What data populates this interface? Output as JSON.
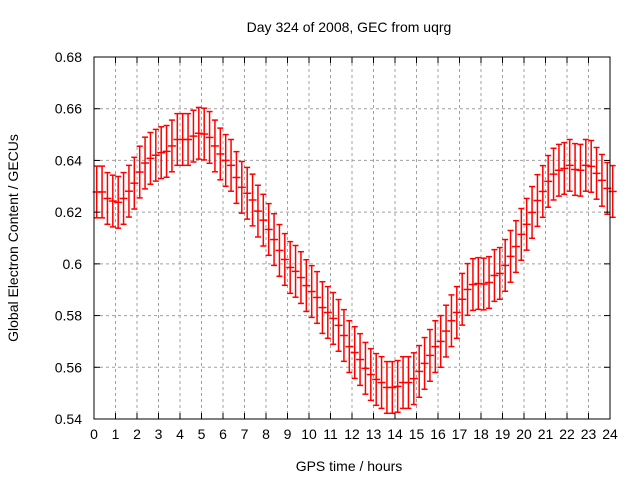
{
  "chart_data": {
    "type": "scatter",
    "title": "Day 324 of 2008, GEC from uqrg",
    "xlabel": "GPS time / hours",
    "ylabel": "Global Electron Content / GECUs",
    "xlim": [
      0,
      24
    ],
    "ylim": [
      0.54,
      0.68
    ],
    "xticks": [
      "0",
      "1",
      "2",
      "3",
      "4",
      "5",
      "6",
      "7",
      "8",
      "9",
      "10",
      "11",
      "12",
      "13",
      "14",
      "15",
      "16",
      "17",
      "18",
      "19",
      "20",
      "21",
      "22",
      "23",
      "24"
    ],
    "yticks": [
      "0.54",
      "0.56",
      "0.58",
      "0.6",
      "0.62",
      "0.64",
      "0.66",
      "0.68"
    ],
    "grid": true,
    "series": [
      {
        "name": "GEC",
        "color": "#ff0000",
        "x_start": 0.125,
        "x_step": 0.25,
        "error": 0.01,
        "values": [
          0.6278,
          0.6278,
          0.6253,
          0.6243,
          0.6238,
          0.6253,
          0.6281,
          0.6312,
          0.6355,
          0.639,
          0.6408,
          0.642,
          0.643,
          0.6435,
          0.6456,
          0.6481,
          0.6481,
          0.6481,
          0.6494,
          0.6505,
          0.6502,
          0.6489,
          0.6456,
          0.6425,
          0.64,
          0.6381,
          0.6334,
          0.6296,
          0.6273,
          0.6247,
          0.6204,
          0.6169,
          0.6133,
          0.6094,
          0.6052,
          0.6017,
          0.5986,
          0.5971,
          0.5947,
          0.5916,
          0.5893,
          0.587,
          0.5831,
          0.5812,
          0.5789,
          0.5762,
          0.5723,
          0.568,
          0.5657,
          0.563,
          0.5596,
          0.5572,
          0.5553,
          0.5541,
          0.5522,
          0.5522,
          0.5526,
          0.5541,
          0.5541,
          0.5556,
          0.5584,
          0.5615,
          0.5646,
          0.568,
          0.57,
          0.574,
          0.578,
          0.5812,
          0.5863,
          0.5901,
          0.592,
          0.5924,
          0.5922,
          0.5928,
          0.5955,
          0.5963,
          0.5994,
          0.6029,
          0.6067,
          0.6114,
          0.6153,
          0.6199,
          0.6245,
          0.628,
          0.6319,
          0.6347,
          0.6362,
          0.6369,
          0.6381,
          0.6365,
          0.6362,
          0.6381,
          0.6377,
          0.635,
          0.6323,
          0.6292,
          0.628
        ]
      }
    ]
  }
}
